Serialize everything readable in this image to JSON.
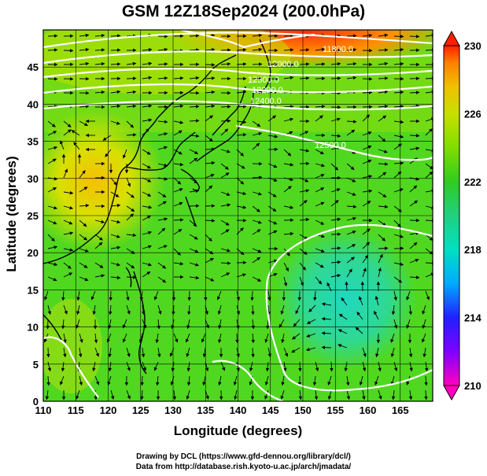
{
  "title": "GSM 12Z18Sep2024 (200.0hPa)",
  "credits": {
    "line1": "Drawing by DCL (https://www.gfd-dennou.org/library/dcl/)",
    "line2": "Data from http://database.rish.kyoto-u.ac.jp/arch/jmadata/"
  },
  "axes": {
    "xlabel": "Longitude (degrees)",
    "ylabel": "Latitude  (degrees)",
    "x_ticks": [
      "110",
      "115",
      "120",
      "125",
      "130",
      "135",
      "140",
      "145",
      "150",
      "155",
      "160",
      "165"
    ],
    "y_ticks": [
      "0",
      "5",
      "10",
      "15",
      "20",
      "25",
      "30",
      "35",
      "40",
      "45"
    ],
    "xlim": [
      110,
      170
    ],
    "ylim": [
      0,
      50
    ]
  },
  "colorbar": {
    "labels": [
      "230",
      "226",
      "222",
      "218",
      "214",
      "210"
    ],
    "range": [
      210,
      230
    ],
    "colors": [
      "#ff00c0",
      "#8000ff",
      "#2020ff",
      "#00aaff",
      "#00e0c0",
      "#20d080",
      "#30cc20",
      "#80dd00",
      "#c8e000",
      "#f0c000",
      "#ff8000",
      "#ff2000"
    ]
  },
  "contour_labels": [
    "11800.0",
    "12000.0",
    "12200.0",
    "12300.0",
    "12400.0",
    "12500.0"
  ],
  "regions": {
    "warm_north": "#ff4010",
    "warm_west": "#f0d000",
    "cool_east": "#30d8a0",
    "background": "#50d820"
  }
}
